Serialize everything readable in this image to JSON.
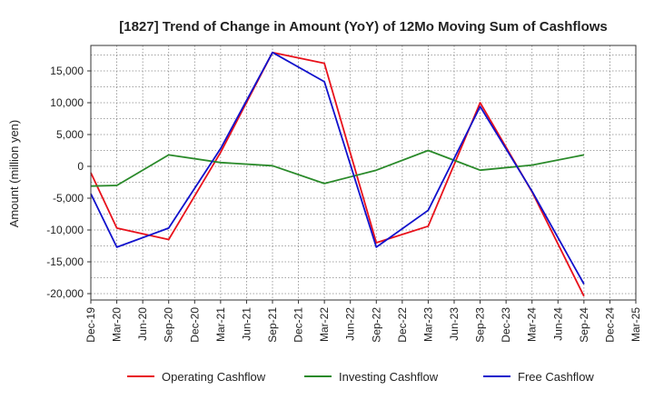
{
  "chart_data": {
    "type": "line",
    "title": "[1827]  Trend of Change in Amount (YoY) of 12Mo Moving Sum of Cashflows",
    "xlabel": "",
    "ylabel": "Amount (million yen)",
    "ylim": [
      -21000,
      19000
    ],
    "yticks": [
      15000,
      10000,
      5000,
      0,
      -5000,
      -10000,
      -15000,
      -20000
    ],
    "ytick_labels": [
      "15,000",
      "10,000",
      "5,000",
      "0",
      "-5,000",
      "-10,000",
      "-15,000",
      "-20,000"
    ],
    "categories": [
      "Dec-19",
      "Mar-20",
      "Jun-20",
      "Sep-20",
      "Dec-20",
      "Mar-21",
      "Jun-21",
      "Sep-21",
      "Dec-21",
      "Mar-22",
      "Jun-22",
      "Sep-22",
      "Dec-22",
      "Mar-23",
      "Jun-23",
      "Sep-23",
      "Dec-23",
      "Mar-24",
      "Jun-24",
      "Sep-24",
      "Dec-24",
      "Mar-25"
    ],
    "grid": true,
    "legend_position": "bottom",
    "series": [
      {
        "name": "Operating Cashflow",
        "color": "#e8111b",
        "values": [
          -1000,
          -9700,
          null,
          -11500,
          null,
          2200,
          null,
          17900,
          null,
          16200,
          null,
          -12000,
          null,
          -9400,
          null,
          10000,
          null,
          -4000,
          null,
          -20400,
          null,
          null
        ]
      },
      {
        "name": "Investing Cashflow",
        "color": "#2a8a2a",
        "values": [
          -3100,
          -3000,
          null,
          1800,
          null,
          600,
          null,
          100,
          null,
          -2700,
          null,
          -600,
          null,
          2500,
          null,
          -600,
          null,
          200,
          null,
          1800,
          null,
          null
        ]
      },
      {
        "name": "Free Cashflow",
        "color": "#1111cc",
        "values": [
          -4300,
          -12700,
          null,
          -9700,
          null,
          2800,
          null,
          17900,
          null,
          13300,
          null,
          -12700,
          null,
          -6900,
          null,
          9400,
          null,
          -3900,
          null,
          -18500,
          null,
          null
        ]
      }
    ]
  }
}
